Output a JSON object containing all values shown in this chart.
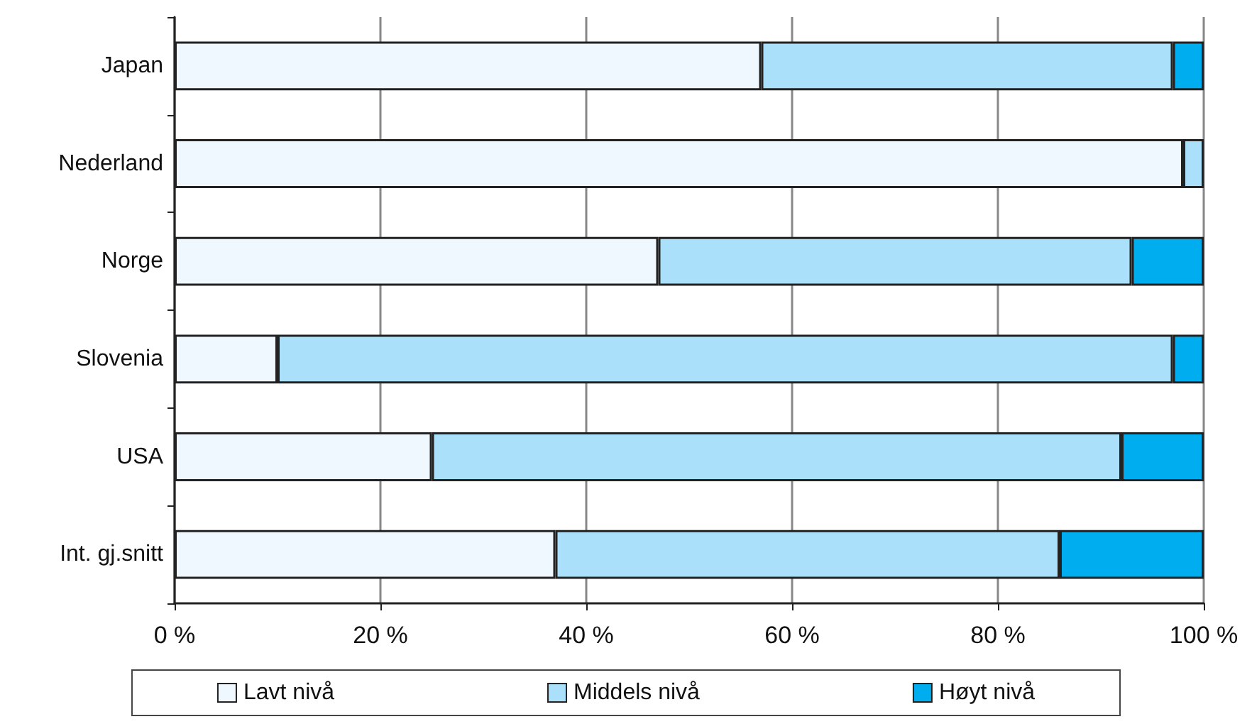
{
  "chart_data": {
    "type": "bar",
    "orientation": "horizontal",
    "stacked": true,
    "categories": [
      "Japan",
      "Nederland",
      "Norge",
      "Slovenia",
      "USA",
      "Int. gj.snitt"
    ],
    "series": [
      {
        "name": "Lavt nivå",
        "color": "#eff7ff",
        "values": [
          57,
          98,
          47,
          10,
          25,
          37
        ]
      },
      {
        "name": "Middels nivå",
        "color": "#abe0fb",
        "values": [
          40,
          2,
          46,
          87,
          67,
          49
        ]
      },
      {
        "name": "Høyt nivå",
        "color": "#00adef",
        "values": [
          3,
          null,
          7,
          3,
          8,
          14
        ]
      }
    ],
    "xlim": [
      0,
      100
    ],
    "xticks": [
      {
        "value": 0,
        "label": "0 %"
      },
      {
        "value": 20,
        "label": "20 %"
      },
      {
        "value": 40,
        "label": "40 %"
      },
      {
        "value": 60,
        "label": "60 %"
      },
      {
        "value": 80,
        "label": "80 %"
      },
      {
        "value": 100,
        "label": "100 %"
      }
    ],
    "grid": "x",
    "legend": "bottom"
  }
}
